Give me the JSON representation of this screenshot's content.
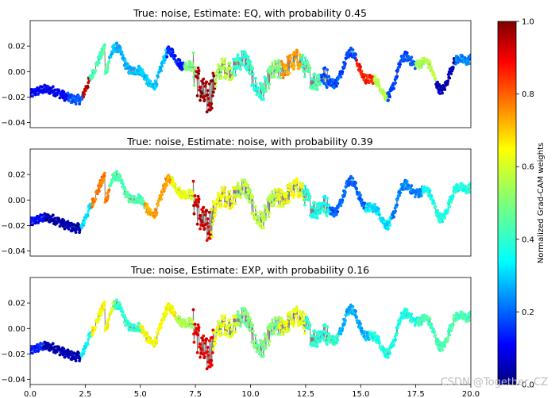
{
  "chart_data": [
    {
      "type": "scatter",
      "title": "True:  noise, Estimate: EQ, with probability 0.45",
      "xlim": [
        0,
        20
      ],
      "ylim": [
        -0.044,
        0.04
      ],
      "yticks": [
        -0.04,
        -0.02,
        0.0,
        0.02
      ],
      "yticklabels": [
        "−0.04",
        "−0.02",
        "0.00",
        "0.02"
      ],
      "xticks_shown": false,
      "series": [
        {
          "values_note_hidden": false
        }
      ],
      "cam_segments": [
        {
          "x0": 0.0,
          "x1": 1.7,
          "w": 0.12
        },
        {
          "x0": 1.7,
          "x1": 2.4,
          "w": 0.2
        },
        {
          "x0": 2.4,
          "x1": 2.7,
          "w": 0.95
        },
        {
          "x0": 2.7,
          "x1": 3.6,
          "w": 0.45
        },
        {
          "x0": 3.6,
          "x1": 4.8,
          "w": 0.3
        },
        {
          "x0": 4.8,
          "x1": 6.2,
          "w": 0.32
        },
        {
          "x0": 6.2,
          "x1": 7.0,
          "w": 0.15
        },
        {
          "x0": 7.0,
          "x1": 7.5,
          "w": 0.5
        },
        {
          "x0": 7.5,
          "x1": 8.4,
          "w": 0.97
        },
        {
          "x0": 8.4,
          "x1": 9.2,
          "w": 0.55
        },
        {
          "x0": 9.2,
          "x1": 10.8,
          "w": 0.42
        },
        {
          "x0": 10.8,
          "x1": 11.4,
          "w": 0.5
        },
        {
          "x0": 11.4,
          "x1": 12.3,
          "w": 0.72
        },
        {
          "x0": 12.3,
          "x1": 13.2,
          "w": 0.45
        },
        {
          "x0": 13.2,
          "x1": 14.8,
          "w": 0.2
        },
        {
          "x0": 14.8,
          "x1": 15.6,
          "w": 0.85
        },
        {
          "x0": 15.6,
          "x1": 16.2,
          "w": 0.55
        },
        {
          "x0": 16.2,
          "x1": 17.5,
          "w": 0.2
        },
        {
          "x0": 17.5,
          "x1": 18.4,
          "w": 0.55
        },
        {
          "x0": 18.4,
          "x1": 19.3,
          "w": 0.05
        },
        {
          "x0": 19.3,
          "x1": 20.0,
          "w": 0.25
        }
      ]
    },
    {
      "type": "scatter",
      "title": "True:  noise, Estimate: noise, with probability 0.39",
      "xlim": [
        0,
        20
      ],
      "ylim": [
        -0.044,
        0.04
      ],
      "yticks": [
        -0.04,
        -0.02,
        0.0,
        0.02
      ],
      "yticklabels": [
        "−0.04",
        "−0.02",
        "0.00",
        "0.02"
      ],
      "xticks_shown": false,
      "cam_segments": [
        {
          "x0": 0.0,
          "x1": 0.7,
          "w": 0.12
        },
        {
          "x0": 0.7,
          "x1": 2.3,
          "w": 0.04
        },
        {
          "x0": 2.3,
          "x1": 2.8,
          "w": 0.35
        },
        {
          "x0": 2.8,
          "x1": 3.6,
          "w": 0.75
        },
        {
          "x0": 3.6,
          "x1": 5.2,
          "w": 0.45
        },
        {
          "x0": 5.2,
          "x1": 6.4,
          "w": 0.72
        },
        {
          "x0": 6.4,
          "x1": 7.4,
          "w": 0.6
        },
        {
          "x0": 7.4,
          "x1": 8.2,
          "w": 0.92
        },
        {
          "x0": 8.2,
          "x1": 9.3,
          "w": 0.62
        },
        {
          "x0": 9.3,
          "x1": 11.2,
          "w": 0.55
        },
        {
          "x0": 11.2,
          "x1": 12.4,
          "w": 0.62
        },
        {
          "x0": 12.4,
          "x1": 13.6,
          "w": 0.4
        },
        {
          "x0": 13.6,
          "x1": 15.2,
          "w": 0.22
        },
        {
          "x0": 15.2,
          "x1": 16.4,
          "w": 0.35
        },
        {
          "x0": 16.4,
          "x1": 17.8,
          "w": 0.25
        },
        {
          "x0": 17.8,
          "x1": 20.0,
          "w": 0.4
        }
      ]
    },
    {
      "type": "scatter",
      "title": "True:  noise, Estimate: EXP, with probability 0.16",
      "xlim": [
        0,
        20
      ],
      "ylim": [
        -0.044,
        0.04
      ],
      "yticks": [
        -0.04,
        -0.02,
        0.0,
        0.02
      ],
      "yticklabels": [
        "−0.04",
        "−0.02",
        "0.00",
        "0.02"
      ],
      "xticks": [
        0.0,
        2.5,
        5.0,
        7.5,
        10.0,
        12.5,
        15.0,
        17.5,
        20.0
      ],
      "xticklabels": [
        "0.0",
        "2.5",
        "5.0",
        "7.5",
        "10.0",
        "12.5",
        "15.0",
        "17.5",
        "20.0"
      ],
      "xticks_shown": true,
      "cam_segments": [
        {
          "x0": 0.0,
          "x1": 0.6,
          "w": 0.15
        },
        {
          "x0": 0.6,
          "x1": 2.3,
          "w": 0.05
        },
        {
          "x0": 2.3,
          "x1": 2.8,
          "w": 0.38
        },
        {
          "x0": 2.8,
          "x1": 3.8,
          "w": 0.62
        },
        {
          "x0": 3.8,
          "x1": 5.0,
          "w": 0.42
        },
        {
          "x0": 5.0,
          "x1": 6.6,
          "w": 0.62
        },
        {
          "x0": 6.6,
          "x1": 7.4,
          "w": 0.55
        },
        {
          "x0": 7.4,
          "x1": 8.3,
          "w": 0.9
        },
        {
          "x0": 8.3,
          "x1": 9.4,
          "w": 0.6
        },
        {
          "x0": 9.4,
          "x1": 11.3,
          "w": 0.5
        },
        {
          "x0": 11.3,
          "x1": 12.5,
          "w": 0.6
        },
        {
          "x0": 12.5,
          "x1": 14.0,
          "w": 0.42
        },
        {
          "x0": 14.0,
          "x1": 15.4,
          "w": 0.3
        },
        {
          "x0": 15.4,
          "x1": 17.6,
          "w": 0.4
        },
        {
          "x0": 17.6,
          "x1": 20.0,
          "w": 0.45
        }
      ]
    }
  ],
  "colorbar": {
    "label": "Normalized Grad-CAM weights",
    "ticks": [
      0.0,
      0.2,
      0.4,
      0.6,
      0.8,
      1.0
    ],
    "ticklabels": [
      "0.0",
      "0.2",
      "0.4",
      "0.6",
      "0.8",
      "1.0"
    ],
    "colormap": "jet"
  },
  "signal": {
    "x_range": [
      0,
      20
    ],
    "y_range": [
      -0.04,
      0.035
    ],
    "waveform_color": "#808080"
  },
  "watermark": "CSDN @Together_CZ"
}
